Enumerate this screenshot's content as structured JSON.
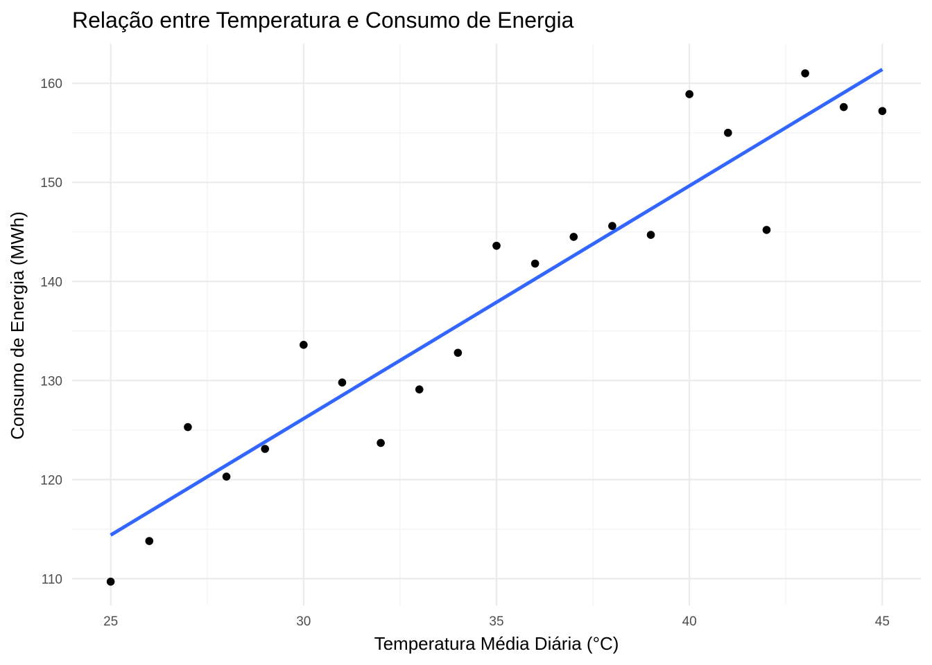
{
  "chart_data": {
    "type": "scatter",
    "title": "Relação entre Temperatura e Consumo de Energia",
    "xlabel": "Temperatura Média Diária (°C)",
    "ylabel": "Consumo de Energia (MWh)",
    "xlim": [
      24,
      46
    ],
    "ylim": [
      107.3,
      164
    ],
    "x_ticks": [
      25,
      30,
      35,
      40,
      45
    ],
    "y_ticks": [
      110,
      120,
      130,
      140,
      150,
      160
    ],
    "x_tick_labels": [
      "25",
      "30",
      "35",
      "40",
      "45"
    ],
    "y_tick_labels": [
      "110",
      "120",
      "130",
      "140",
      "150",
      "160"
    ],
    "grid": true,
    "points": [
      {
        "x": 25,
        "y": 109.7
      },
      {
        "x": 26,
        "y": 113.8
      },
      {
        "x": 27,
        "y": 125.3
      },
      {
        "x": 28,
        "y": 120.3
      },
      {
        "x": 29,
        "y": 123.1
      },
      {
        "x": 30,
        "y": 133.6
      },
      {
        "x": 31,
        "y": 129.8
      },
      {
        "x": 32,
        "y": 123.7
      },
      {
        "x": 33,
        "y": 129.1
      },
      {
        "x": 34,
        "y": 132.8
      },
      {
        "x": 35,
        "y": 143.6
      },
      {
        "x": 36,
        "y": 141.8
      },
      {
        "x": 37,
        "y": 144.5
      },
      {
        "x": 38,
        "y": 145.6
      },
      {
        "x": 39,
        "y": 144.7
      },
      {
        "x": 40,
        "y": 158.9
      },
      {
        "x": 41,
        "y": 155.0
      },
      {
        "x": 42,
        "y": 145.2
      },
      {
        "x": 43,
        "y": 161.0
      },
      {
        "x": 44,
        "y": 157.6
      },
      {
        "x": 45,
        "y": 157.2
      }
    ],
    "trend_line": {
      "method": "linear",
      "from": {
        "x": 25,
        "y": 114.4
      },
      "to": {
        "x": 45,
        "y": 161.4
      }
    },
    "colors": {
      "points": "#000000",
      "trend_line": "#3366ff",
      "grid_major": "#ebebeb",
      "grid_minor": "#f2f2f2",
      "tick_text": "#4d4d4d"
    }
  }
}
